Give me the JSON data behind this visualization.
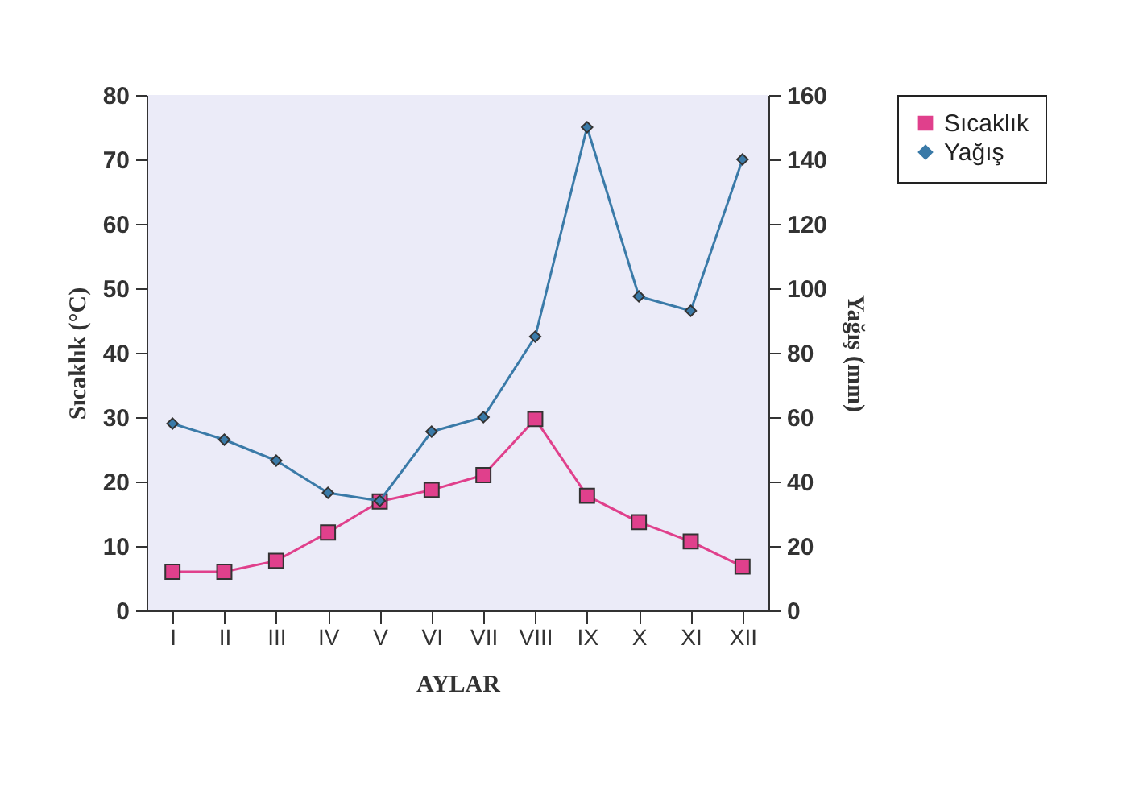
{
  "chart_data": {
    "type": "line",
    "xlabel": "AYLAR",
    "ylabel": "Sıcaklık (°C)",
    "y2label": "Yağış (mm)",
    "categories": [
      "I",
      "II",
      "III",
      "IV",
      "V",
      "VI",
      "VII",
      "VIII",
      "IX",
      "X",
      "XI",
      "XII"
    ],
    "series": [
      {
        "name": "Sıcaklık",
        "color": "#e0408c",
        "marker": "square",
        "values": [
          6,
          6,
          7.7,
          12.1,
          16.9,
          18.7,
          21,
          29.7,
          17.8,
          13.7,
          10.7,
          6.8
        ]
      },
      {
        "name": "Yağış",
        "color": "#3a7aa8",
        "marker": "diamond",
        "axis": "y2",
        "values": [
          58,
          53,
          46.5,
          36.5,
          34,
          55.5,
          60,
          85,
          150,
          97.5,
          93,
          140
        ]
      }
    ],
    "ylim": [
      0,
      80
    ],
    "yticks": [
      0,
      10,
      20,
      30,
      40,
      50,
      60,
      70,
      80
    ],
    "y2lim": [
      0,
      160
    ],
    "y2ticks": [
      0,
      20,
      40,
      60,
      80,
      100,
      120,
      140,
      160
    ],
    "legend": "right",
    "grid": false
  }
}
